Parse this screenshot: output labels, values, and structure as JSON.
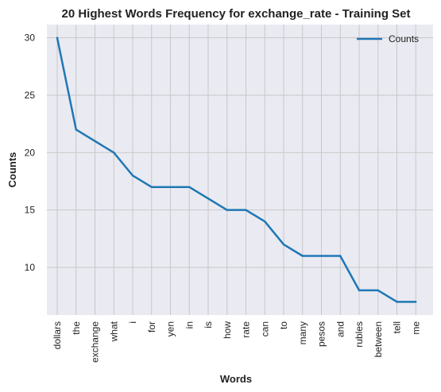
{
  "chart_data": {
    "type": "line",
    "title": "20 Highest Words Frequency for exchange_rate - Training Set",
    "xlabel": "Words",
    "ylabel": "Counts",
    "categories": [
      "dollars",
      "the",
      "exchange",
      "what",
      "i",
      "for",
      "yen",
      "in",
      "is",
      "how",
      "rate",
      "can",
      "to",
      "many",
      "pesos",
      "and",
      "rubles",
      "between",
      "tell",
      "me"
    ],
    "series": [
      {
        "name": "Counts",
        "values": [
          30,
          22,
          21,
          20,
          18,
          17,
          17,
          17,
          16,
          15,
          15,
          14,
          12,
          11,
          11,
          11,
          8,
          8,
          7,
          7
        ]
      }
    ],
    "ylim": [
      5.85,
      31.15
    ],
    "yticks": [
      10,
      15,
      20,
      25,
      30
    ],
    "grid": true,
    "legend_position": "upper right",
    "colors": {
      "line": "#1f77b4",
      "plot_bg": "#eaeaf2",
      "grid": "#c8c8c8"
    }
  }
}
